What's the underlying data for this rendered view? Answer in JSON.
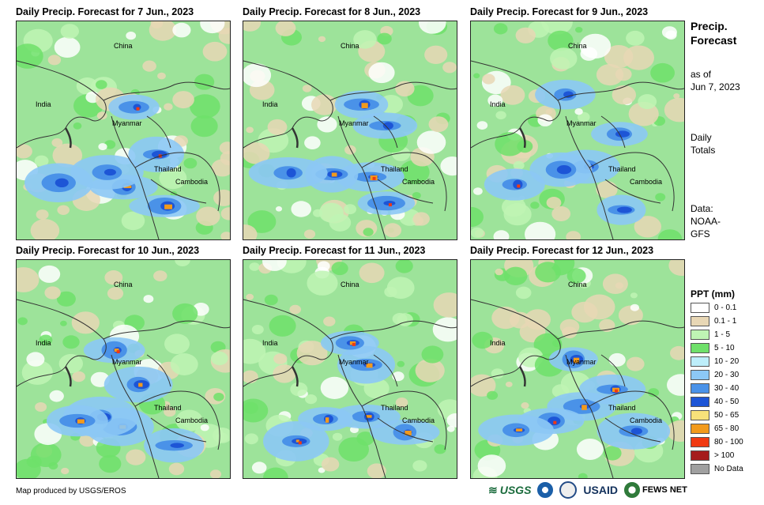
{
  "panels": [
    {
      "title": "Daily Precip. Forecast for 7 Jun., 2023",
      "col": 0,
      "row": 0
    },
    {
      "title": "Daily Precip. Forecast for 8 Jun., 2023",
      "col": 1,
      "row": 0
    },
    {
      "title": "Daily Precip. Forecast for 9 Jun., 2023",
      "col": 2,
      "row": 0
    },
    {
      "title": "Daily Precip. Forecast for 10 Jun., 2023",
      "col": 0,
      "row": 1
    },
    {
      "title": "Daily Precip. Forecast for 11 Jun., 2023",
      "col": 1,
      "row": 1
    },
    {
      "title": "Daily Precip. Forecast for 12 Jun., 2023",
      "col": 2,
      "row": 1
    }
  ],
  "map_labels": {
    "china": "China",
    "india": "India",
    "myanmar": "Myanmar",
    "thailand": "Thailand",
    "cambodia": "Cambodia"
  },
  "sidebar": {
    "title_line1": "Precip.",
    "title_line2": "Forecast",
    "asof_line1": "as of",
    "asof_line2": "Jun 7, 2023",
    "totals_line1": "Daily",
    "totals_line2": "Totals",
    "data_line1": "Data:",
    "data_line2": "NOAA-",
    "data_line3": "GFS"
  },
  "legend": {
    "title": "PPT (mm)",
    "items": [
      {
        "label": "0 - 0.1",
        "color": "#ffffff"
      },
      {
        "label": "0.1 - 1",
        "color": "#e8d7b5"
      },
      {
        "label": "1 - 5",
        "color": "#bff5b4"
      },
      {
        "label": "5 - 10",
        "color": "#6fe06a"
      },
      {
        "label": "10 - 20",
        "color": "#bdeefa"
      },
      {
        "label": "20 - 30",
        "color": "#8cc8f5"
      },
      {
        "label": "30 - 40",
        "color": "#4a92e8"
      },
      {
        "label": "40 - 50",
        "color": "#1d55d6"
      },
      {
        "label": "50 - 65",
        "color": "#f8e27a"
      },
      {
        "label": "65 - 80",
        "color": "#f29a1c"
      },
      {
        "label": "80 - 100",
        "color": "#f03a12"
      },
      {
        "label": "> 100",
        "color": "#a51c1c"
      },
      {
        "label": "No Data",
        "color": "#a0a0a0"
      }
    ]
  },
  "footer": {
    "credit": "Map produced by USGS/EROS",
    "logo_usgs": "USGS",
    "logo_usaid": "USAID",
    "logo_fews": "FEWS NET"
  }
}
